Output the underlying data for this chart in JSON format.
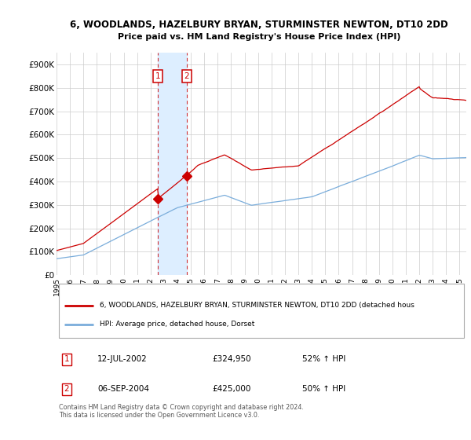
{
  "title": "6, WOODLANDS, HAZELBURY BRYAN, STURMINSTER NEWTON, DT10 2DD",
  "subtitle": "Price paid vs. HM Land Registry's House Price Index (HPI)",
  "ylim": [
    0,
    950000
  ],
  "yticks": [
    0,
    100000,
    200000,
    300000,
    400000,
    500000,
    600000,
    700000,
    800000,
    900000
  ],
  "ytick_labels": [
    "£0",
    "£100K",
    "£200K",
    "£300K",
    "£400K",
    "£500K",
    "£600K",
    "£700K",
    "£800K",
    "£900K"
  ],
  "background_color": "#ffffff",
  "grid_color": "#cccccc",
  "red_line_color": "#cc0000",
  "blue_line_color": "#7aaddb",
  "shade_color": "#ddeeff",
  "transaction1": {
    "year": 2002.54,
    "price": 324950,
    "label": "1",
    "date": "12-JUL-2002",
    "price_str": "£324,950",
    "hpi_pct": "52% ↑ HPI"
  },
  "transaction2": {
    "year": 2004.69,
    "price": 425000,
    "label": "2",
    "date": "06-SEP-2004",
    "price_str": "£425,000",
    "hpi_pct": "50% ↑ HPI"
  },
  "legend_red_label": "6, WOODLANDS, HAZELBURY BRYAN, STURMINSTER NEWTON, DT10 2DD (detached hous",
  "legend_blue_label": "HPI: Average price, detached house, Dorset",
  "footer": "Contains HM Land Registry data © Crown copyright and database right 2024.\nThis data is licensed under the Open Government Licence v3.0."
}
